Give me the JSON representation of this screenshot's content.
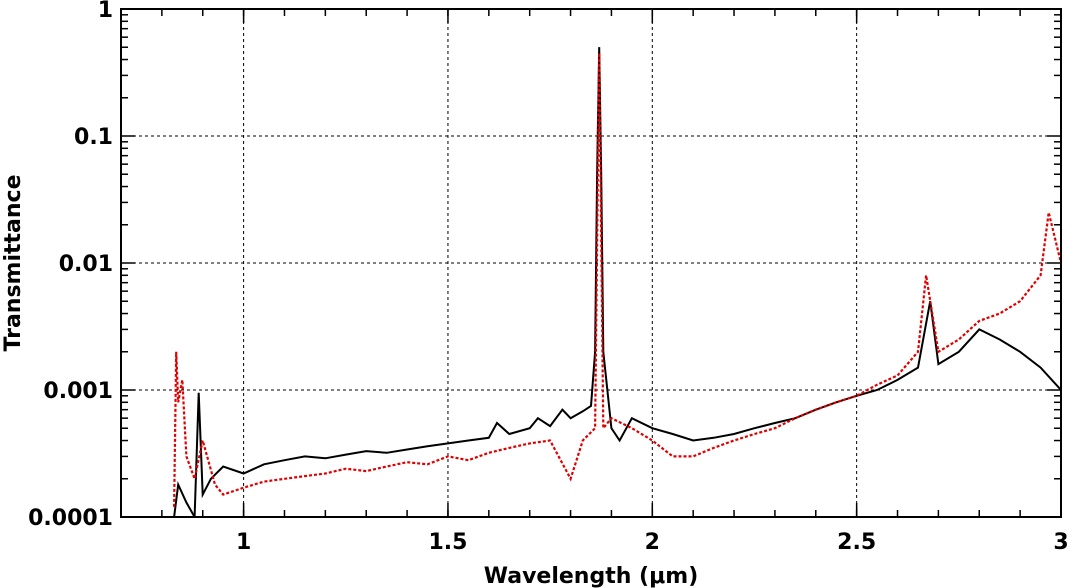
{
  "chart_data": {
    "type": "line",
    "xlabel": "Wavelength (μm)",
    "ylabel": "Transmittance",
    "xlim": [
      0.7,
      3.0
    ],
    "ylim": [
      0.0001,
      1
    ],
    "yscale": "log",
    "grid": true,
    "x_ticks": [
      1,
      1.5,
      2,
      2.5,
      3
    ],
    "x_tick_labels": [
      "1",
      "1.5",
      "2",
      "2.5",
      "3"
    ],
    "y_ticks": [
      0.0001,
      0.001,
      0.01,
      0.1,
      1
    ],
    "y_tick_labels": [
      "0.0001",
      "0.001",
      "0.01",
      "0.1",
      "1"
    ],
    "series": [
      {
        "style": "solid",
        "color": "#000000",
        "points": [
          [
            0.83,
            0.0001
          ],
          [
            0.84,
            0.00018
          ],
          [
            0.86,
            0.00013
          ],
          [
            0.88,
            0.0001
          ],
          [
            0.89,
            0.00095
          ],
          [
            0.9,
            0.00015
          ],
          [
            0.92,
            0.0002
          ],
          [
            0.95,
            0.00025
          ],
          [
            1.0,
            0.00022
          ],
          [
            1.05,
            0.00026
          ],
          [
            1.1,
            0.00028
          ],
          [
            1.15,
            0.0003
          ],
          [
            1.2,
            0.00029
          ],
          [
            1.25,
            0.00031
          ],
          [
            1.3,
            0.00033
          ],
          [
            1.35,
            0.00032
          ],
          [
            1.4,
            0.00034
          ],
          [
            1.45,
            0.00036
          ],
          [
            1.5,
            0.00038
          ],
          [
            1.55,
            0.0004
          ],
          [
            1.6,
            0.00042
          ],
          [
            1.62,
            0.00055
          ],
          [
            1.65,
            0.00045
          ],
          [
            1.7,
            0.0005
          ],
          [
            1.72,
            0.0006
          ],
          [
            1.75,
            0.00052
          ],
          [
            1.78,
            0.0007
          ],
          [
            1.8,
            0.0006
          ],
          [
            1.83,
            0.00068
          ],
          [
            1.85,
            0.00075
          ],
          [
            1.86,
            0.002
          ],
          [
            1.865,
            0.05
          ],
          [
            1.87,
            0.5
          ],
          [
            1.875,
            0.05
          ],
          [
            1.88,
            0.002
          ],
          [
            1.9,
            0.0005
          ],
          [
            1.92,
            0.0004
          ],
          [
            1.95,
            0.0006
          ],
          [
            2.0,
            0.0005
          ],
          [
            2.05,
            0.00045
          ],
          [
            2.1,
            0.0004
          ],
          [
            2.15,
            0.00042
          ],
          [
            2.2,
            0.00045
          ],
          [
            2.25,
            0.0005
          ],
          [
            2.3,
            0.00055
          ],
          [
            2.35,
            0.0006
          ],
          [
            2.4,
            0.0007
          ],
          [
            2.45,
            0.0008
          ],
          [
            2.5,
            0.0009
          ],
          [
            2.55,
            0.001
          ],
          [
            2.6,
            0.0012
          ],
          [
            2.65,
            0.0015
          ],
          [
            2.68,
            0.005
          ],
          [
            2.7,
            0.0016
          ],
          [
            2.75,
            0.002
          ],
          [
            2.8,
            0.003
          ],
          [
            2.85,
            0.0025
          ],
          [
            2.9,
            0.002
          ],
          [
            2.95,
            0.0015
          ],
          [
            3.0,
            0.001
          ]
        ]
      },
      {
        "style": "dotted",
        "color": "#e00000",
        "points": [
          [
            0.83,
            0.00012
          ],
          [
            0.835,
            0.002
          ],
          [
            0.84,
            0.0008
          ],
          [
            0.85,
            0.0012
          ],
          [
            0.86,
            0.0003
          ],
          [
            0.88,
            0.0002
          ],
          [
            0.9,
            0.0004
          ],
          [
            0.93,
            0.00018
          ],
          [
            0.95,
            0.00015
          ],
          [
            1.0,
            0.00017
          ],
          [
            1.05,
            0.00019
          ],
          [
            1.1,
            0.0002
          ],
          [
            1.15,
            0.00021
          ],
          [
            1.2,
            0.00022
          ],
          [
            1.25,
            0.00024
          ],
          [
            1.3,
            0.00023
          ],
          [
            1.35,
            0.00025
          ],
          [
            1.4,
            0.00027
          ],
          [
            1.45,
            0.00026
          ],
          [
            1.5,
            0.0003
          ],
          [
            1.55,
            0.00028
          ],
          [
            1.6,
            0.00032
          ],
          [
            1.65,
            0.00035
          ],
          [
            1.7,
            0.00038
          ],
          [
            1.75,
            0.0004
          ],
          [
            1.8,
            0.0002
          ],
          [
            1.83,
            0.0004
          ],
          [
            1.86,
            0.0005
          ],
          [
            1.87,
            0.45
          ],
          [
            1.88,
            0.0005
          ],
          [
            1.9,
            0.0006
          ],
          [
            1.95,
            0.0005
          ],
          [
            2.0,
            0.0004
          ],
          [
            2.05,
            0.0003
          ],
          [
            2.1,
            0.0003
          ],
          [
            2.15,
            0.00035
          ],
          [
            2.2,
            0.0004
          ],
          [
            2.25,
            0.00045
          ],
          [
            2.3,
            0.0005
          ],
          [
            2.35,
            0.0006
          ],
          [
            2.4,
            0.0007
          ],
          [
            2.45,
            0.0008
          ],
          [
            2.5,
            0.0009
          ],
          [
            2.55,
            0.0011
          ],
          [
            2.6,
            0.0013
          ],
          [
            2.65,
            0.002
          ],
          [
            2.67,
            0.008
          ],
          [
            2.7,
            0.002
          ],
          [
            2.75,
            0.0025
          ],
          [
            2.8,
            0.0035
          ],
          [
            2.85,
            0.004
          ],
          [
            2.9,
            0.005
          ],
          [
            2.95,
            0.008
          ],
          [
            2.97,
            0.025
          ],
          [
            3.0,
            0.01
          ]
        ]
      }
    ]
  }
}
